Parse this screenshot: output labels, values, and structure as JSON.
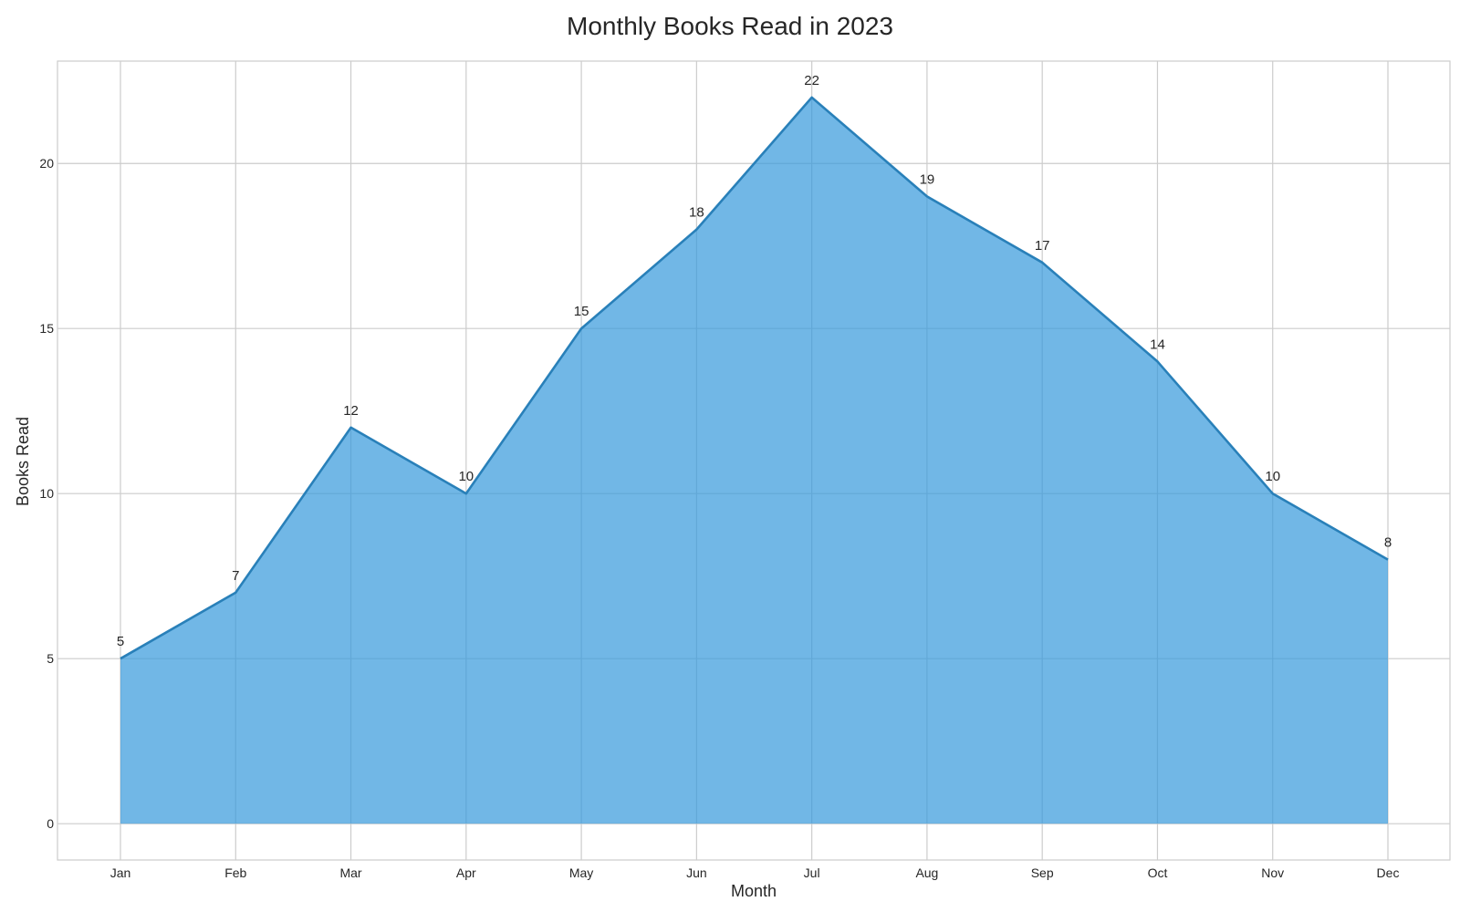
{
  "chart_data": {
    "type": "area",
    "title": "Monthly Books Read in 2023",
    "xlabel": "Month",
    "ylabel": "Books Read",
    "categories": [
      "Jan",
      "Feb",
      "Mar",
      "Apr",
      "May",
      "Jun",
      "Jul",
      "Aug",
      "Sep",
      "Oct",
      "Nov",
      "Dec"
    ],
    "values": [
      5,
      7,
      12,
      10,
      15,
      18,
      22,
      19,
      17,
      14,
      10,
      8
    ],
    "ylim": [
      -1.1,
      23.1
    ],
    "yticks": [
      0,
      5,
      10,
      15,
      20
    ],
    "grid": true,
    "legend": "none",
    "colors": {
      "fill": "#3498db",
      "line": "#2980b9",
      "grid": "#cccccc",
      "text": "#262626"
    }
  }
}
